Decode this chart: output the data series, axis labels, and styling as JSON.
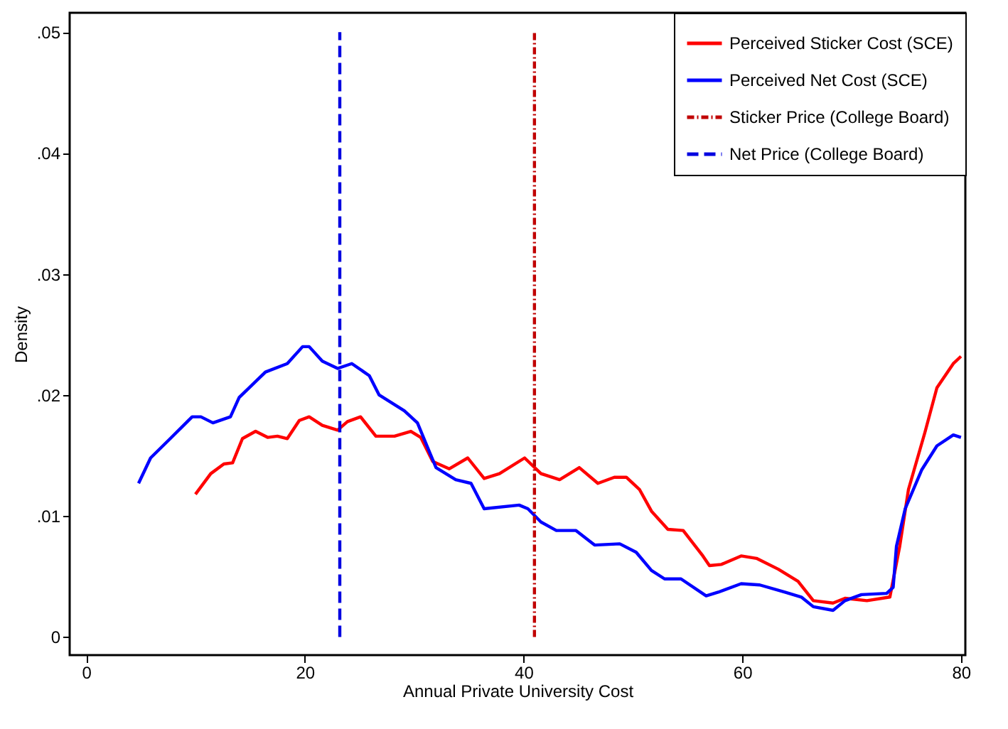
{
  "chart_data": {
    "type": "line",
    "xlabel": "Annual Private University Cost",
    "ylabel": "Density",
    "xlim": [
      -1.5,
      80.4
    ],
    "ylim": [
      -0.0015,
      0.0516
    ],
    "xticks": [
      0,
      20,
      40,
      60,
      80
    ],
    "yticks": [
      {
        "value": 0,
        "label": "0"
      },
      {
        "value": 0.01,
        "label": ".01"
      },
      {
        "value": 0.02,
        "label": ".02"
      },
      {
        "value": 0.03,
        "label": ".03"
      },
      {
        "value": 0.04,
        "label": ".04"
      },
      {
        "value": 0.05,
        "label": ".05"
      }
    ],
    "grid": false,
    "legend": "top right",
    "line_style": "solid",
    "series": [
      {
        "name": "Perceived Sticker Cost (SCE)",
        "color": "#ff0000",
        "x": [
          10.0,
          11.4,
          12.6,
          13.4,
          14.3,
          15.5,
          16.6,
          17.5,
          18.4,
          19.5,
          20.4,
          21.6,
          23.0,
          23.9,
          25.1,
          26.5,
          28.2,
          29.7,
          30.6,
          31.7,
          33.2,
          34.9,
          36.4,
          37.8,
          40.1,
          41.6,
          43.3,
          45.1,
          46.8,
          48.3,
          49.4,
          50.6,
          51.7,
          53.2,
          54.6,
          56.4,
          57.0,
          58.1,
          59.9,
          61.3,
          63.3,
          65.1,
          66.5,
          68.3,
          69.4,
          71.4,
          73.5,
          74.4,
          75.2,
          76.7,
          77.8,
          79.3,
          80.0
        ],
        "values": [
          0.0118,
          0.0135,
          0.0143,
          0.0144,
          0.0164,
          0.017,
          0.0165,
          0.0166,
          0.0164,
          0.0179,
          0.0182,
          0.0175,
          0.0171,
          0.0178,
          0.0182,
          0.0166,
          0.0166,
          0.017,
          0.0165,
          0.0145,
          0.0139,
          0.0148,
          0.0131,
          0.0135,
          0.0148,
          0.0135,
          0.013,
          0.014,
          0.0127,
          0.0132,
          0.0132,
          0.0122,
          0.0104,
          0.0089,
          0.0088,
          0.0067,
          0.0059,
          0.006,
          0.0067,
          0.0065,
          0.0056,
          0.0046,
          0.003,
          0.0028,
          0.0032,
          0.003,
          0.0033,
          0.0075,
          0.0122,
          0.0169,
          0.0206,
          0.0226,
          0.0232
        ]
      },
      {
        "name": "Perceived Net Cost (SCE)",
        "color": "#0000ff",
        "x": [
          4.8,
          5.9,
          7.7,
          9.7,
          10.5,
          11.6,
          13.2,
          14.0,
          16.4,
          18.4,
          19.8,
          20.4,
          21.6,
          23.0,
          24.3,
          25.9,
          26.8,
          29.1,
          30.3,
          31.4,
          32.0,
          33.8,
          35.2,
          36.4,
          39.6,
          40.4,
          41.6,
          43.0,
          44.8,
          46.5,
          48.8,
          50.3,
          51.7,
          52.9,
          54.4,
          56.7,
          57.8,
          59.9,
          61.6,
          63.9,
          65.4,
          66.5,
          68.3,
          69.4,
          70.9,
          73.2,
          73.8,
          74.1,
          74.9,
          76.4,
          77.8,
          79.3,
          80.0
        ],
        "values": [
          0.0127,
          0.0148,
          0.0164,
          0.0182,
          0.0182,
          0.0177,
          0.0182,
          0.0198,
          0.0219,
          0.0226,
          0.024,
          0.024,
          0.0228,
          0.0222,
          0.0226,
          0.0216,
          0.02,
          0.0187,
          0.0177,
          0.0153,
          0.014,
          0.013,
          0.0127,
          0.0106,
          0.0109,
          0.0106,
          0.0095,
          0.0088,
          0.0088,
          0.0076,
          0.0077,
          0.007,
          0.0055,
          0.0048,
          0.0048,
          0.0034,
          0.0037,
          0.0044,
          0.0043,
          0.0037,
          0.0033,
          0.0025,
          0.0022,
          0.003,
          0.0035,
          0.0036,
          0.0041,
          0.0075,
          0.0106,
          0.0138,
          0.0158,
          0.0167,
          0.0165
        ]
      },
      {
        "name": "Sticker Price (College Board)",
        "color": "#c00000",
        "line_style": "dotted",
        "x": [
          41.0,
          41.0
        ],
        "values": [
          0,
          0.05
        ]
      },
      {
        "name": "Net Price (College Board)",
        "color": "#0000e0",
        "line_style": "dashed",
        "x": [
          23.2,
          23.2
        ],
        "values": [
          0,
          0.05
        ]
      }
    ]
  }
}
